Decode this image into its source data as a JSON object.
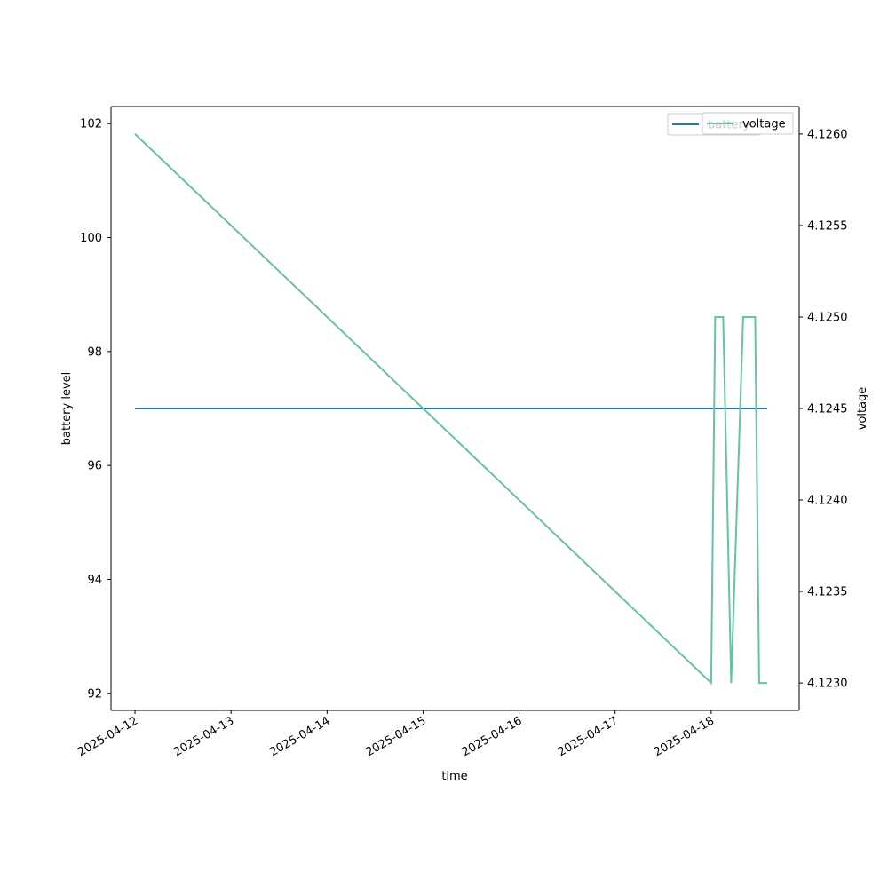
{
  "chart_data": {
    "type": "line",
    "xlabel": "time",
    "ylabel_left": "battery level",
    "ylabel_right": "voltage",
    "x_ticks": [
      "2025-04-12",
      "2025-04-13",
      "2025-04-14",
      "2025-04-15",
      "2025-04-16",
      "2025-04-17",
      "2025-04-18"
    ],
    "xlim": [
      "2025-04-11T18:00",
      "2025-04-18T22:00"
    ],
    "y_left": {
      "ticks": [
        "92",
        "94",
        "96",
        "98",
        "100",
        "102"
      ],
      "tick_values": [
        92,
        94,
        96,
        98,
        100,
        102
      ],
      "ylim": [
        91.7,
        102.3
      ]
    },
    "y_right": {
      "ticks": [
        "4.1230",
        "4.1235",
        "4.1240",
        "4.1245",
        "4.1250",
        "4.1255",
        "4.1260"
      ],
      "tick_values": [
        4.123,
        4.1235,
        4.124,
        4.1245,
        4.125,
        4.1255,
        4.126
      ],
      "ylim": [
        4.12285,
        4.12615
      ]
    },
    "series": [
      {
        "name": "battery",
        "axis": "left",
        "color": "#1f77b4",
        "points": [
          {
            "x": "2025-04-12T00:00",
            "y": 97
          },
          {
            "x": "2025-04-18T14:00",
            "y": 97
          }
        ]
      },
      {
        "name": "voltage",
        "axis": "right",
        "color": "#66c2a5",
        "points": [
          {
            "x": "2025-04-12T00:00",
            "y": 4.126
          },
          {
            "x": "2025-04-18T00:00",
            "y": 4.123
          },
          {
            "x": "2025-04-18T01:00",
            "y": 4.125
          },
          {
            "x": "2025-04-18T03:00",
            "y": 4.125
          },
          {
            "x": "2025-04-18T05:00",
            "y": 4.123
          },
          {
            "x": "2025-04-18T08:00",
            "y": 4.125
          },
          {
            "x": "2025-04-18T11:00",
            "y": 4.125
          },
          {
            "x": "2025-04-18T12:00",
            "y": 4.123
          },
          {
            "x": "2025-04-18T14:00",
            "y": 4.123
          }
        ]
      }
    ],
    "legends": [
      {
        "placement": "top-right",
        "label": "battery"
      },
      {
        "placement": "top-right",
        "label": "voltage"
      }
    ],
    "grid": false
  }
}
